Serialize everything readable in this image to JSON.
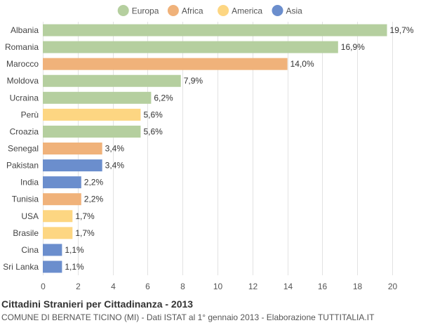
{
  "chart_data": {
    "type": "bar",
    "orientation": "horizontal",
    "categories": [
      "Albania",
      "Romania",
      "Marocco",
      "Moldova",
      "Ucraina",
      "Perù",
      "Croazia",
      "Senegal",
      "Pakistan",
      "India",
      "Tunisia",
      "USA",
      "Brasile",
      "Cina",
      "Sri Lanka"
    ],
    "values": [
      19.7,
      16.9,
      14.0,
      7.9,
      6.2,
      5.6,
      5.6,
      3.4,
      3.4,
      2.2,
      2.2,
      1.7,
      1.7,
      1.1,
      1.1
    ],
    "value_labels": [
      "19,7%",
      "16,9%",
      "14,0%",
      "7,9%",
      "6,2%",
      "5,6%",
      "5,6%",
      "3,4%",
      "3,4%",
      "2,2%",
      "2,2%",
      "1,7%",
      "1,7%",
      "1,1%",
      "1,1%"
    ],
    "bar_groups": [
      "Europa",
      "Europa",
      "Africa",
      "Europa",
      "Europa",
      "America",
      "Europa",
      "Africa",
      "Asia",
      "Asia",
      "Africa",
      "America",
      "America",
      "Asia",
      "Asia"
    ],
    "legend": [
      {
        "name": "Europa",
        "color": "#b5cf9f"
      },
      {
        "name": "Africa",
        "color": "#f0b27a"
      },
      {
        "name": "America",
        "color": "#fdd682"
      },
      {
        "name": "Asia",
        "color": "#6b8ecd"
      }
    ],
    "legend_position": "top-center",
    "xlim": [
      0,
      20
    ],
    "xticks": [
      0,
      2,
      4,
      6,
      8,
      10,
      12,
      14,
      16,
      18,
      20
    ],
    "grid": true
  },
  "footer": {
    "title": "Cittadini Stranieri per Cittadinanza - 2013",
    "subtitle": "COMUNE DI BERNATE TICINO (MI) - Dati ISTAT al 1° gennaio 2013 - Elaborazione TUTTITALIA.IT"
  }
}
